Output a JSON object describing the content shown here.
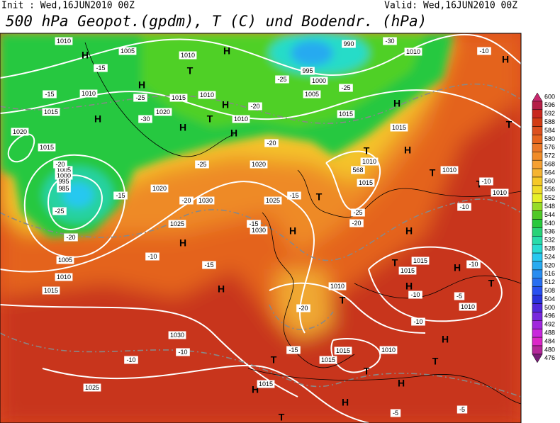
{
  "header": {
    "init": "Init : Wed,16JUN2010 00Z",
    "valid": "Valid: Wed,16JUN2010 00Z",
    "title": "500 hPa Geopot.(gpdm), T (C) und Bodendr. (hPa)"
  },
  "colorbar": {
    "levels": [
      600,
      596,
      592,
      588,
      584,
      580,
      576,
      572,
      568,
      564,
      560,
      556,
      552,
      548,
      544,
      540,
      536,
      532,
      528,
      524,
      520,
      516,
      512,
      508,
      504,
      500,
      496,
      492,
      488,
      484,
      480,
      476
    ],
    "colors": [
      "#c8286e",
      "#b41e46",
      "#c8281e",
      "#d23c14",
      "#dc501e",
      "#e6641e",
      "#eb7828",
      "#f08c28",
      "#f5a032",
      "#f5b432",
      "#f5c828",
      "#f0dc28",
      "#e6f028",
      "#96dc28",
      "#50c828",
      "#28c83c",
      "#28d278",
      "#28dcaa",
      "#28dcd2",
      "#28c8f0",
      "#28aaf0",
      "#288cf0",
      "#286ef0",
      "#2850f0",
      "#2832dc",
      "#5028dc",
      "#7828dc",
      "#a028dc",
      "#c828dc",
      "#dc28c8",
      "#b4289a",
      "#781e78"
    ]
  },
  "map_labels": [
    "H",
    "H",
    "1005",
    "1010",
    "1010",
    "T",
    "-15",
    "H",
    "-25",
    "1010",
    "-15",
    "1015",
    "H",
    "-30",
    "1020",
    "1015",
    "1010",
    "H",
    "T",
    "H",
    "1010",
    "-20",
    "H",
    "990",
    "-30",
    "1010",
    "-10",
    "H",
    "995",
    "-25",
    "1000",
    "1005",
    "-25",
    "1015",
    "H",
    "1015",
    "T",
    "1020",
    "1015",
    "-20",
    "T",
    "H",
    "1005",
    "1000",
    "995",
    "985",
    "-20",
    "-25",
    "-25",
    "1020",
    "1020",
    "-15",
    "-20",
    "1030",
    "1025",
    "-15",
    "T",
    "1010",
    "568",
    "1015",
    "1010",
    "T",
    "T",
    "-10",
    "1010",
    "-15",
    "1030",
    "H",
    "-10",
    "1025",
    "H",
    "-20",
    "1005",
    "-10",
    "-15",
    "1010",
    "1015",
    "H",
    "H",
    "-25",
    "-20",
    "T",
    "1015",
    "1015",
    "H",
    "-10",
    "T",
    "H",
    "-10",
    "-5",
    "1010",
    "1010",
    "T",
    "-20",
    "-10",
    "1030",
    "-10",
    "-10",
    "-15",
    "1015",
    "1010",
    "H",
    "T",
    "1015",
    "T",
    "T",
    "1025",
    "H",
    "1015",
    "H",
    "H",
    "T",
    "-5",
    "-5"
  ]
}
